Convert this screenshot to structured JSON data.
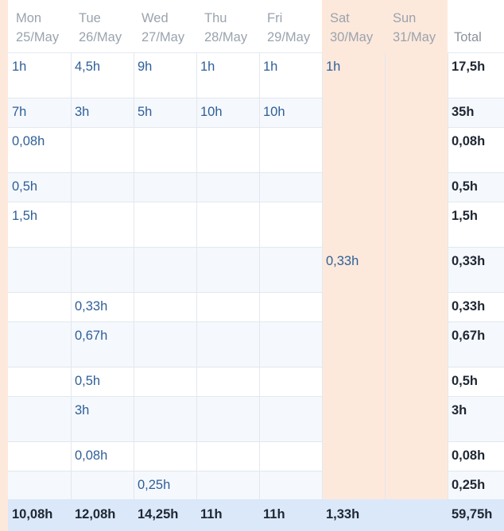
{
  "days": [
    {
      "day": "Mon",
      "date": "25/May"
    },
    {
      "day": "Tue",
      "date": "26/May"
    },
    {
      "day": "Wed",
      "date": "27/May"
    },
    {
      "day": "Thu",
      "date": "28/May"
    },
    {
      "day": "Fri",
      "date": "29/May"
    },
    {
      "day": "Sat",
      "date": "30/May"
    },
    {
      "day": "Sun",
      "date": "31/May"
    }
  ],
  "total_label": "Total",
  "rows": [
    {
      "cells": [
        "1h",
        "4,5h",
        "9h",
        "1h",
        "1h",
        "1h",
        ""
      ],
      "total": "17,5h"
    },
    {
      "cells": [
        "7h",
        "3h",
        "5h",
        "10h",
        "10h",
        "",
        ""
      ],
      "total": "35h"
    },
    {
      "cells": [
        "0,08h",
        "",
        "",
        "",
        "",
        "",
        ""
      ],
      "total": "0,08h"
    },
    {
      "cells": [
        "0,5h",
        "",
        "",
        "",
        "",
        "",
        ""
      ],
      "total": "0,5h"
    },
    {
      "cells": [
        "1,5h",
        "",
        "",
        "",
        "",
        "",
        ""
      ],
      "total": "1,5h"
    },
    {
      "cells": [
        "",
        "",
        "",
        "",
        "",
        "0,33h",
        ""
      ],
      "total": "0,33h"
    },
    {
      "cells": [
        "",
        "0,33h",
        "",
        "",
        "",
        "",
        ""
      ],
      "total": "0,33h"
    },
    {
      "cells": [
        "",
        "0,67h",
        "",
        "",
        "",
        "",
        ""
      ],
      "total": "0,67h"
    },
    {
      "cells": [
        "",
        "0,5h",
        "",
        "",
        "",
        "",
        ""
      ],
      "total": "0,5h"
    },
    {
      "cells": [
        "",
        "3h",
        "",
        "",
        "",
        "",
        ""
      ],
      "total": "3h"
    },
    {
      "cells": [
        "",
        "0,08h",
        "",
        "",
        "",
        "",
        ""
      ],
      "total": "0,08h"
    },
    {
      "cells": [
        "",
        "",
        "0,25h",
        "",
        "",
        "",
        ""
      ],
      "total": "0,25h"
    }
  ],
  "footer": {
    "cells": [
      "10,08h",
      "12,08h",
      "14,25h",
      "11h",
      "11h",
      "1,33h",
      ""
    ],
    "total": "59,75h"
  },
  "colors": {
    "weekend": "#fde9dc",
    "cell_text": "#2e5f98",
    "footer_bg": "#dbe8f9",
    "row_alt": "#f5f8fd"
  }
}
